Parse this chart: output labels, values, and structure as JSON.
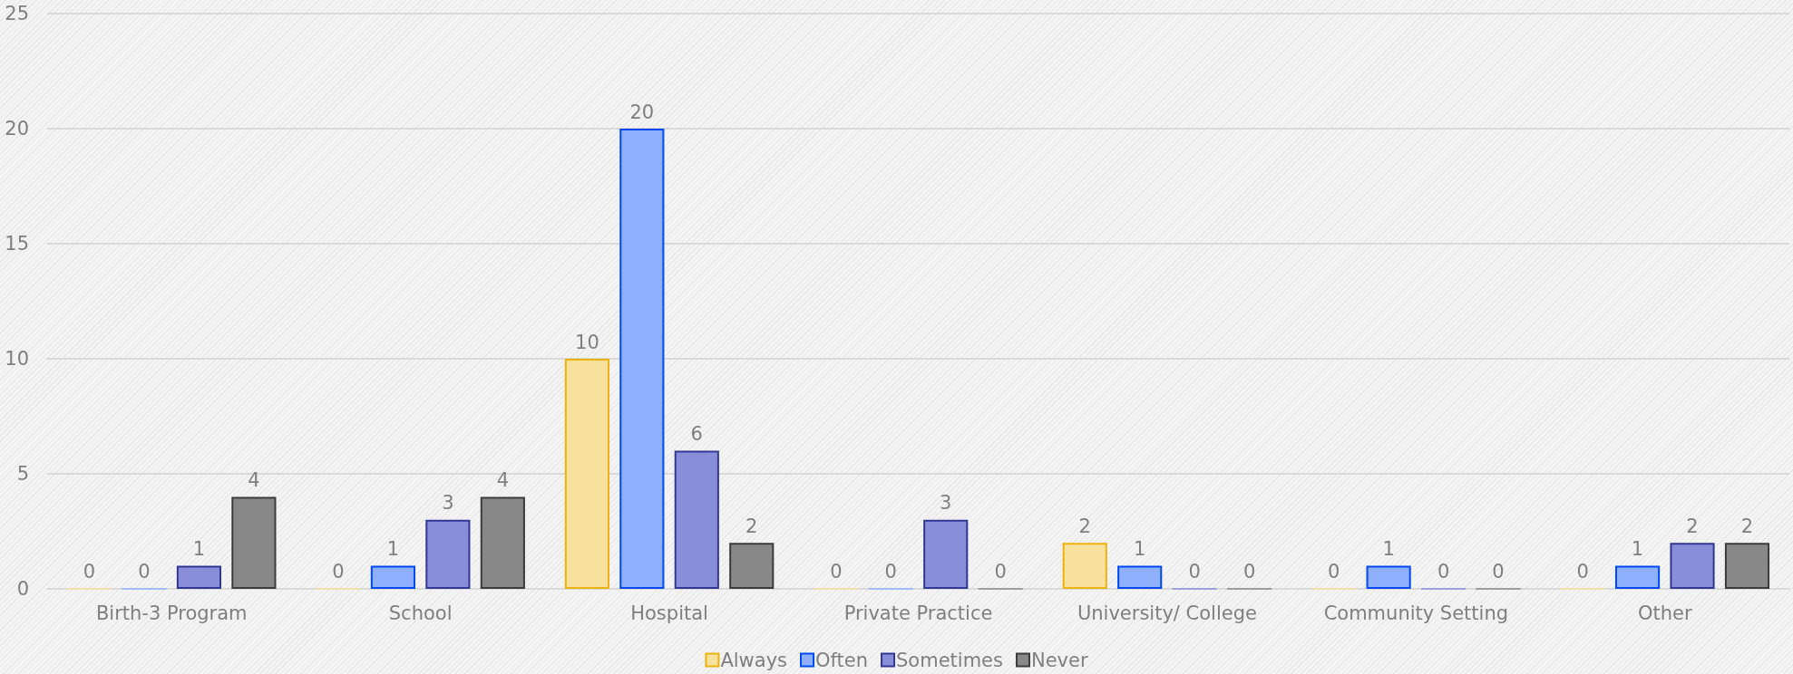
{
  "chart_data": {
    "type": "bar",
    "categories": [
      "Birth-3 Program",
      "School",
      "Hospital",
      "Private Practice",
      "University/ College",
      "Community Setting",
      "Other"
    ],
    "series": [
      {
        "name": "Always",
        "color": "#f8e19c",
        "values": [
          0,
          0,
          10,
          0,
          2,
          0,
          0
        ]
      },
      {
        "name": "Often",
        "color": "#8fb0ff",
        "values": [
          0,
          1,
          20,
          0,
          1,
          1,
          1
        ]
      },
      {
        "name": "Sometimes",
        "color": "#8a8ed8",
        "values": [
          1,
          3,
          6,
          3,
          0,
          0,
          2
        ]
      },
      {
        "name": "Never",
        "color": "#888888",
        "values": [
          4,
          4,
          2,
          0,
          0,
          0,
          2
        ]
      }
    ],
    "ylim": [
      0,
      25
    ],
    "yticks": [
      0,
      5,
      10,
      15,
      20,
      25
    ],
    "grid": "y",
    "legend": "bottom",
    "data_labels": true
  }
}
